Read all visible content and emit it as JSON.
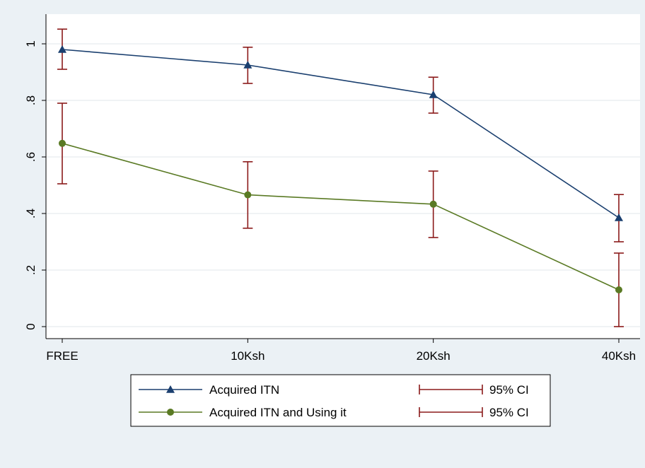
{
  "chart_data": {
    "type": "line",
    "categories": [
      "FREE",
      "10Ksh",
      "20Ksh",
      "40Ksh"
    ],
    "ylim": [
      0,
      1.05
    ],
    "yticks": [
      0,
      0.2,
      0.4,
      0.6,
      0.8,
      1
    ],
    "ytick_labels": [
      "0",
      ".2",
      ".4",
      ".6",
      ".8",
      "1"
    ],
    "grid": true,
    "legend_position": "bottom",
    "series": [
      {
        "name": "Acquired ITN",
        "marker": "triangle",
        "color": "#1a3f6f",
        "values": [
          0.98,
          0.925,
          0.82,
          0.385
        ],
        "ci_low": [
          0.91,
          0.86,
          0.755,
          0.3
        ],
        "ci_high": [
          1.052,
          0.988,
          0.882,
          0.467
        ]
      },
      {
        "name": "Acquired ITN and Using it",
        "marker": "circle",
        "color": "#5a7a24",
        "values": [
          0.648,
          0.466,
          0.433,
          0.13
        ],
        "ci_low": [
          0.505,
          0.348,
          0.315,
          0.0
        ],
        "ci_high": [
          0.79,
          0.583,
          0.55,
          0.26
        ]
      }
    ],
    "ci_color": "#8b1a1a",
    "legend": {
      "items": [
        {
          "label": "Acquired ITN",
          "ci_label": "95% CI"
        },
        {
          "label": "Acquired ITN and Using it",
          "ci_label": "95% CI"
        }
      ]
    }
  }
}
